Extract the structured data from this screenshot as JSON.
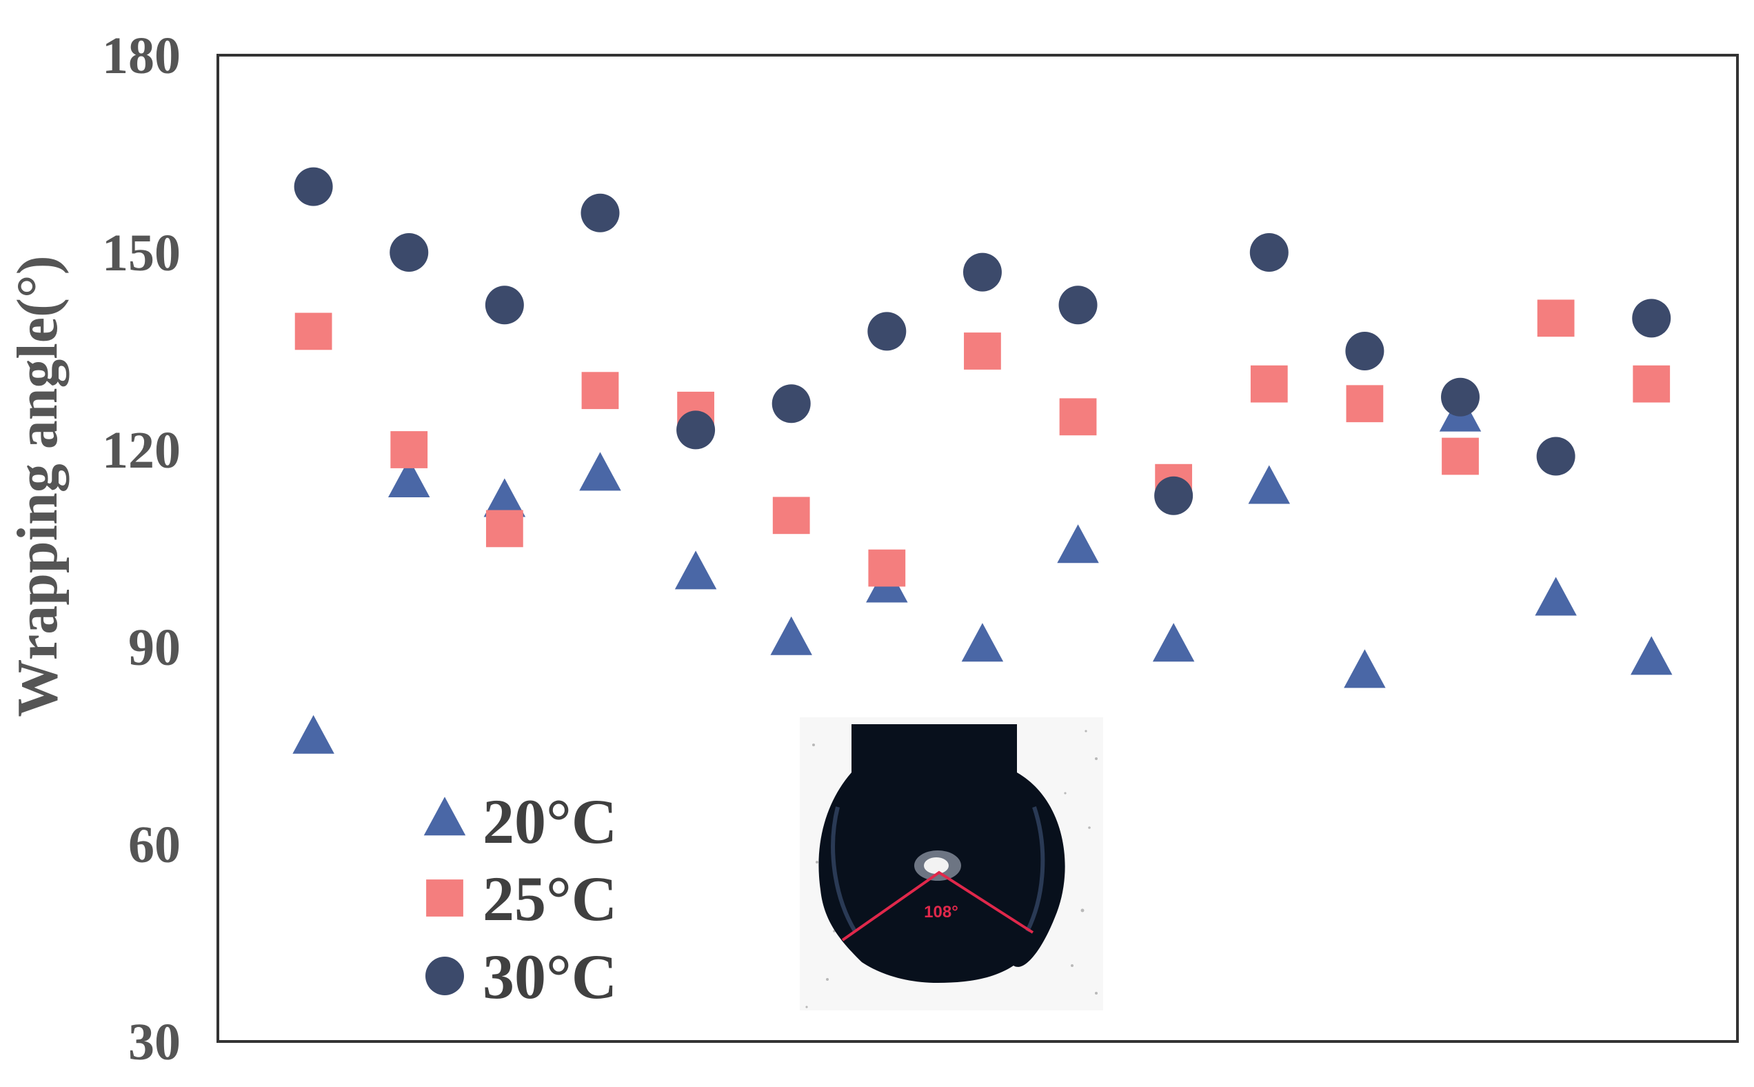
{
  "chart_data": {
    "type": "scatter",
    "title": "",
    "xlabel": "",
    "ylabel": "Wrapping angle(°)",
    "ylim": [
      30,
      180
    ],
    "yticks": [
      30,
      60,
      90,
      120,
      150,
      180
    ],
    "x": [
      1,
      2,
      3,
      4,
      5,
      6,
      7,
      8,
      9,
      10,
      11,
      12,
      13,
      14,
      15
    ],
    "xlim": [
      0,
      15.9
    ],
    "grid": false,
    "legend_position": "bottom-left",
    "series": [
      {
        "name": "20°C",
        "marker": "triangle",
        "color": "#4a67a6",
        "values": [
          76,
          115,
          112,
          116,
          101,
          91,
          99,
          90,
          105,
          90,
          114,
          86,
          125,
          97,
          88
        ]
      },
      {
        "name": "25°C",
        "marker": "square",
        "color": "#f47e7e",
        "values": [
          138,
          120,
          108,
          129,
          126,
          110,
          102,
          135,
          125,
          115,
          130,
          127,
          119,
          140,
          130
        ]
      },
      {
        "name": "30°C",
        "marker": "circle",
        "color": "#3c4a6b",
        "values": [
          160,
          150,
          142,
          156,
          123,
          127,
          138,
          147,
          142,
          113,
          150,
          135,
          128,
          119,
          140
        ]
      }
    ],
    "inset": {
      "label": "108°",
      "line_color": "#e0284b"
    }
  }
}
